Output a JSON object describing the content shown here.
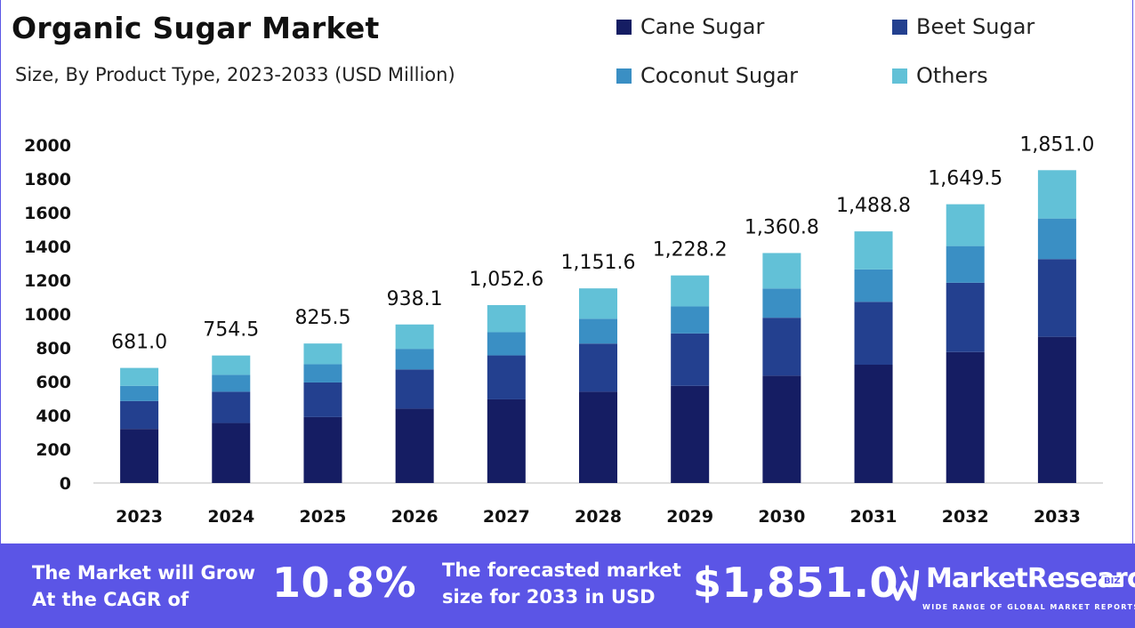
{
  "header": {
    "title": "Organic Sugar Market",
    "subtitle": "Size, By Product Type, 2023-2033 (USD Million)"
  },
  "colors": {
    "cane": "#151d63",
    "beet": "#23408f",
    "coconut": "#3a8fc4",
    "others": "#62c1d7",
    "banner": "#5b55e6"
  },
  "chart_data": {
    "type": "bar",
    "stacked": true,
    "categories": [
      "2023",
      "2024",
      "2025",
      "2026",
      "2027",
      "2028",
      "2029",
      "2030",
      "2031",
      "2032",
      "2033"
    ],
    "series": [
      {
        "name": "Cane Sugar",
        "values": [
          320,
          355,
          390,
          440,
          495,
          540,
          575,
          635,
          700,
          775,
          865
        ]
      },
      {
        "name": "Beet Sugar",
        "values": [
          165,
          185,
          205,
          232,
          260,
          285,
          310,
          343,
          372,
          410,
          460
        ]
      },
      {
        "name": "Coconut Sugar",
        "values": [
          90,
          100,
          108,
          122,
          137,
          147,
          160,
          173,
          192,
          217,
          240
        ]
      },
      {
        "name": "Others",
        "values": [
          106,
          114.5,
          122.5,
          144.1,
          160.6,
          179.6,
          183.2,
          209.8,
          224.8,
          247.5,
          286
        ]
      }
    ],
    "totals": [
      "681.0",
      "754.5",
      "825.5",
      "938.1",
      "1,052.6",
      "1,151.6",
      "1,228.2",
      "1,360.8",
      "1,488.8",
      "1,649.5",
      "1,851.0"
    ],
    "yticks": [
      0,
      200,
      400,
      600,
      800,
      1000,
      1200,
      1400,
      1600,
      1800,
      2000
    ],
    "ylim": [
      0,
      2000
    ],
    "grid": false,
    "legend_position": "top-right"
  },
  "banner": {
    "cagr_text_line1": "The Market will Grow",
    "cagr_text_line2": "At the CAGR of",
    "cagr_value": "10.8%",
    "forecast_text_line1": "The forecasted market",
    "forecast_text_line2": "size for 2033 in USD",
    "forecast_value": "$1,851.0",
    "logo_name": "MarketResearch",
    "logo_badge": "BIZ",
    "logo_tagline": "WIDE RANGE OF GLOBAL MARKET REPORTS"
  }
}
